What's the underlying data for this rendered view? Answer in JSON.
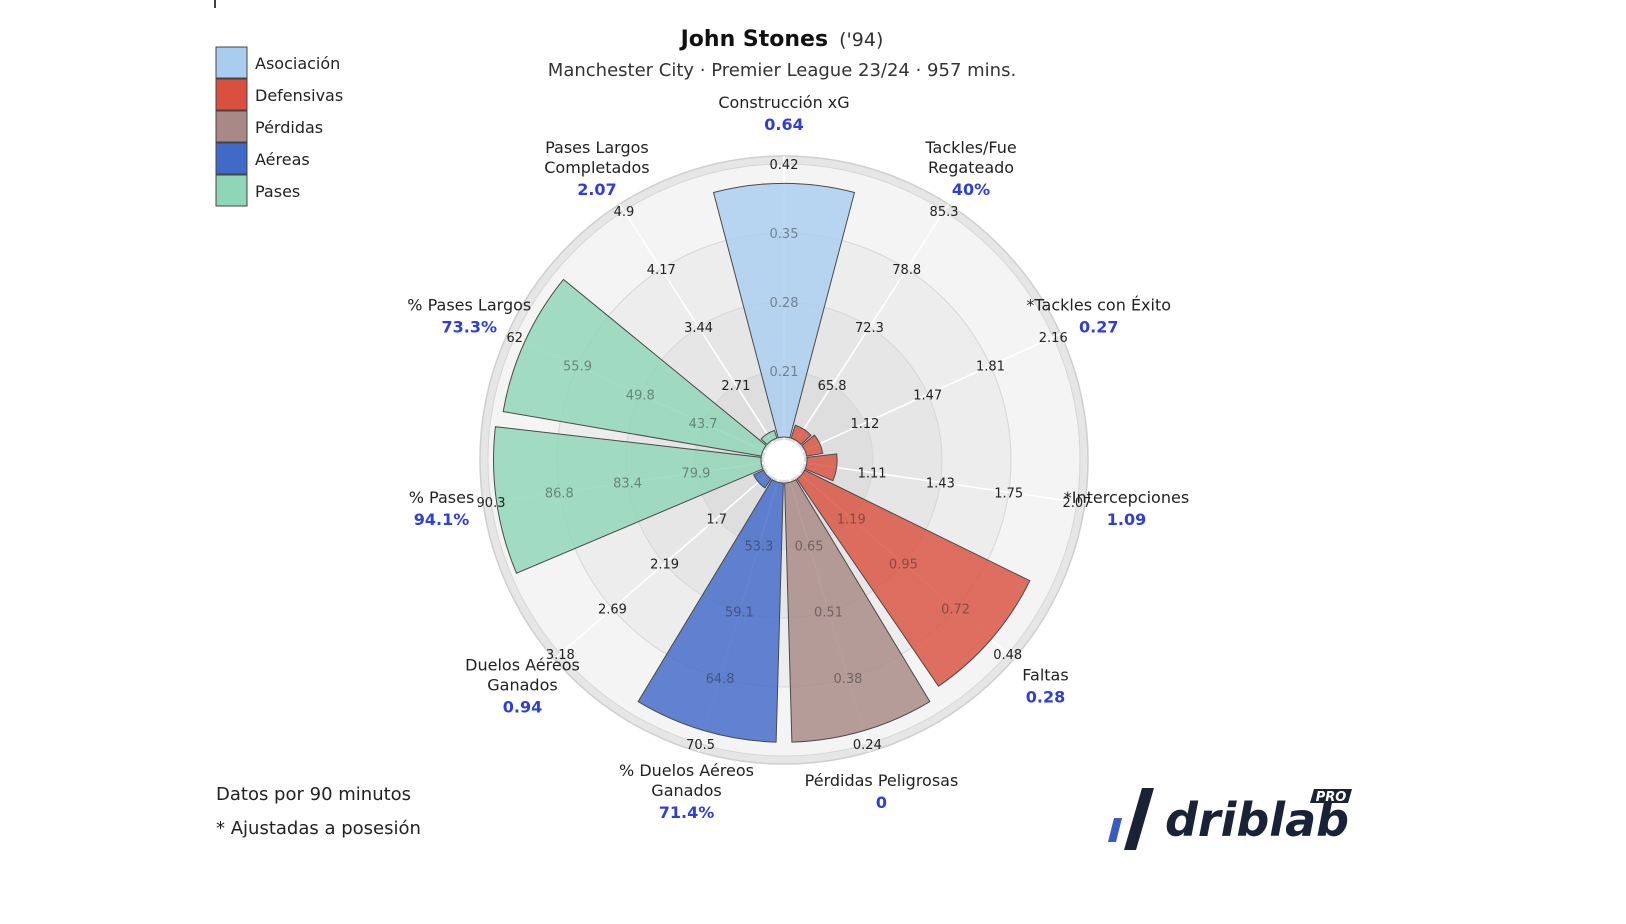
{
  "chart_data": {
    "type": "polar-bar",
    "title": "John Stones",
    "title_suffix": "('94)",
    "subtitle": "Manchester City · Premier League 23/24 · 957 mins.",
    "legend": [
      {
        "name": "Asociación",
        "color": "#a9cdef"
      },
      {
        "name": "Defensivas",
        "color": "#d9503e"
      },
      {
        "name": "Pérdidas",
        "color": "#a88985"
      },
      {
        "name": "Aéreas",
        "color": "#4169c8"
      },
      {
        "name": "Pases",
        "color": "#8fd5b7"
      }
    ],
    "categories": [
      {
        "label": [
          "Construcción xG"
        ],
        "value_label": "0.64",
        "group": "Asociación",
        "color": "#a9cdef",
        "percentile": 0.93,
        "ticks": [
          "0.21",
          "0.28",
          "0.35",
          "0.42"
        ]
      },
      {
        "label": [
          "Tackles/Fue",
          "Regateado"
        ],
        "value_label": "40%",
        "group": "Defensivas",
        "color": "#d9503e",
        "percentile": 0.06,
        "ticks": [
          "65.8",
          "72.3",
          "78.8",
          "85.3"
        ]
      },
      {
        "label": [
          "*Tackles con Éxito"
        ],
        "value_label": "0.27",
        "group": "Defensivas",
        "color": "#d9503e",
        "percentile": 0.07,
        "ticks": [
          "1.12",
          "1.47",
          "1.81",
          "2.16"
        ]
      },
      {
        "label": [
          "*Intercepciones"
        ],
        "value_label": "1.09",
        "group": "Defensivas",
        "color": "#d9503e",
        "percentile": 0.12,
        "ticks": [
          "1.11",
          "1.43",
          "1.75",
          "2.07"
        ]
      },
      {
        "label": [
          "Faltas"
        ],
        "value_label": "0.28",
        "group": "Defensivas",
        "color": "#d9503e",
        "percentile": 0.92,
        "ticks": [
          "1.19",
          "0.95",
          "0.72",
          "0.48"
        ]
      },
      {
        "label": [
          "Pérdidas Peligrosas"
        ],
        "value_label": "0",
        "group": "Pérdidas",
        "color": "#a88985",
        "percentile": 0.95,
        "ticks": [
          "0.65",
          "0.51",
          "0.38",
          "0.24"
        ]
      },
      {
        "label": [
          "% Duelos Aéreos",
          "Ganados"
        ],
        "value_label": "71.4%",
        "group": "Aéreas",
        "color": "#4169c8",
        "percentile": 0.95,
        "ticks": [
          "53.3",
          "59.1",
          "64.8",
          "70.5"
        ]
      },
      {
        "label": [
          "Duelos Aéreos",
          "Ganados"
        ],
        "value_label": "0.94",
        "group": "Aéreas",
        "color": "#4169c8",
        "percentile": 0.05,
        "ticks": [
          "1.7",
          "2.19",
          "2.69",
          "3.18"
        ]
      },
      {
        "label": [
          "% Pases"
        ],
        "value_label": "94.1%",
        "group": "Pases",
        "color": "#8fd5b7",
        "percentile": 0.98,
        "ticks": [
          "79.9",
          "83.4",
          "86.8",
          "90.3"
        ]
      },
      {
        "label": [
          "% Pases Largos"
        ],
        "value_label": "73.3%",
        "group": "Pases",
        "color": "#8fd5b7",
        "percentile": 0.96,
        "ticks": [
          "43.7",
          "49.8",
          "55.9",
          "62"
        ]
      },
      {
        "label": [
          "Pases Largos",
          "Completados"
        ],
        "value_label": "2.07",
        "group": "Pases",
        "color": "#8fd5b7",
        "percentile": 0.04,
        "ticks": [
          "2.71",
          "3.44",
          "4.17",
          "4.9"
        ]
      }
    ]
  },
  "notes": [
    "Datos por 90 minutos",
    "* Ajustadas a posesión"
  ],
  "brand": {
    "name": "driblab",
    "badge": "PRO",
    "color": "#1a2238",
    "accent": "#3a5bbf"
  }
}
